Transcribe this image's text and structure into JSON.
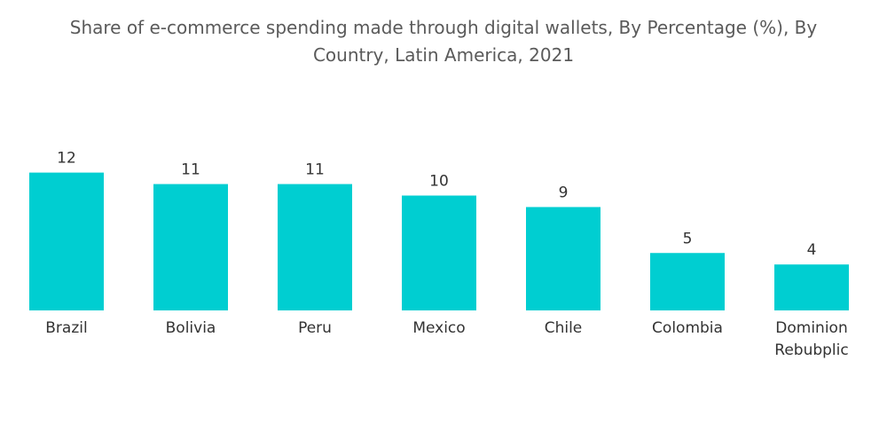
{
  "chart_data": {
    "type": "bar",
    "title": "Share of e-commerce spending made through digital wallets, By Percentage (%), By Country, Latin America, 2021",
    "categories": [
      "Brazil",
      "Bolivia",
      "Peru",
      "Mexico",
      "Chile",
      "Colombia",
      "Dominion Rebubplic"
    ],
    "values": [
      12,
      11,
      11,
      10,
      9,
      5,
      4
    ],
    "color": "#00ced1"
  }
}
